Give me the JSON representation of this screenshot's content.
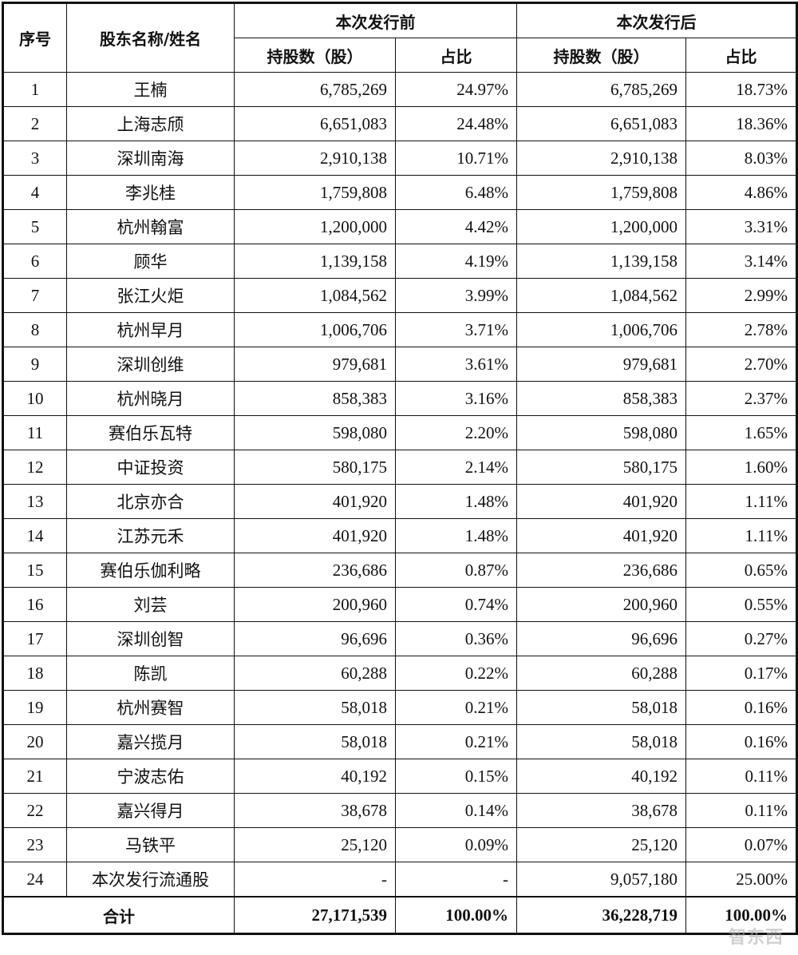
{
  "table": {
    "headers": {
      "seq": "序号",
      "name": "股东名称/姓名",
      "before_group": "本次发行前",
      "after_group": "本次发行后",
      "shares": "持股数（股）",
      "ratio": "占比"
    },
    "rows": [
      {
        "no": "1",
        "name": "王楠",
        "before_shares": "6,785,269",
        "before_ratio": "24.97%",
        "after_shares": "6,785,269",
        "after_ratio": "18.73%"
      },
      {
        "no": "2",
        "name": "上海志颀",
        "before_shares": "6,651,083",
        "before_ratio": "24.48%",
        "after_shares": "6,651,083",
        "after_ratio": "18.36%"
      },
      {
        "no": "3",
        "name": "深圳南海",
        "before_shares": "2,910,138",
        "before_ratio": "10.71%",
        "after_shares": "2,910,138",
        "after_ratio": "8.03%"
      },
      {
        "no": "4",
        "name": "李兆桂",
        "before_shares": "1,759,808",
        "before_ratio": "6.48%",
        "after_shares": "1,759,808",
        "after_ratio": "4.86%"
      },
      {
        "no": "5",
        "name": "杭州翰富",
        "before_shares": "1,200,000",
        "before_ratio": "4.42%",
        "after_shares": "1,200,000",
        "after_ratio": "3.31%"
      },
      {
        "no": "6",
        "name": "顾华",
        "before_shares": "1,139,158",
        "before_ratio": "4.19%",
        "after_shares": "1,139,158",
        "after_ratio": "3.14%"
      },
      {
        "no": "7",
        "name": "张江火炬",
        "before_shares": "1,084,562",
        "before_ratio": "3.99%",
        "after_shares": "1,084,562",
        "after_ratio": "2.99%"
      },
      {
        "no": "8",
        "name": "杭州早月",
        "before_shares": "1,006,706",
        "before_ratio": "3.71%",
        "after_shares": "1,006,706",
        "after_ratio": "2.78%"
      },
      {
        "no": "9",
        "name": "深圳创维",
        "before_shares": "979,681",
        "before_ratio": "3.61%",
        "after_shares": "979,681",
        "after_ratio": "2.70%"
      },
      {
        "no": "10",
        "name": "杭州晓月",
        "before_shares": "858,383",
        "before_ratio": "3.16%",
        "after_shares": "858,383",
        "after_ratio": "2.37%"
      },
      {
        "no": "11",
        "name": "赛伯乐瓦特",
        "before_shares": "598,080",
        "before_ratio": "2.20%",
        "after_shares": "598,080",
        "after_ratio": "1.65%"
      },
      {
        "no": "12",
        "name": "中证投资",
        "before_shares": "580,175",
        "before_ratio": "2.14%",
        "after_shares": "580,175",
        "after_ratio": "1.60%"
      },
      {
        "no": "13",
        "name": "北京亦合",
        "before_shares": "401,920",
        "before_ratio": "1.48%",
        "after_shares": "401,920",
        "after_ratio": "1.11%"
      },
      {
        "no": "14",
        "name": "江苏元禾",
        "before_shares": "401,920",
        "before_ratio": "1.48%",
        "after_shares": "401,920",
        "after_ratio": "1.11%"
      },
      {
        "no": "15",
        "name": "赛伯乐伽利略",
        "before_shares": "236,686",
        "before_ratio": "0.87%",
        "after_shares": "236,686",
        "after_ratio": "0.65%"
      },
      {
        "no": "16",
        "name": "刘芸",
        "before_shares": "200,960",
        "before_ratio": "0.74%",
        "after_shares": "200,960",
        "after_ratio": "0.55%"
      },
      {
        "no": "17",
        "name": "深圳创智",
        "before_shares": "96,696",
        "before_ratio": "0.36%",
        "after_shares": "96,696",
        "after_ratio": "0.27%"
      },
      {
        "no": "18",
        "name": "陈凯",
        "before_shares": "60,288",
        "before_ratio": "0.22%",
        "after_shares": "60,288",
        "after_ratio": "0.17%"
      },
      {
        "no": "19",
        "name": "杭州赛智",
        "before_shares": "58,018",
        "before_ratio": "0.21%",
        "after_shares": "58,018",
        "after_ratio": "0.16%"
      },
      {
        "no": "20",
        "name": "嘉兴揽月",
        "before_shares": "58,018",
        "before_ratio": "0.21%",
        "after_shares": "58,018",
        "after_ratio": "0.16%"
      },
      {
        "no": "21",
        "name": "宁波志佑",
        "before_shares": "40,192",
        "before_ratio": "0.15%",
        "after_shares": "40,192",
        "after_ratio": "0.11%"
      },
      {
        "no": "22",
        "name": "嘉兴得月",
        "before_shares": "38,678",
        "before_ratio": "0.14%",
        "after_shares": "38,678",
        "after_ratio": "0.11%"
      },
      {
        "no": "23",
        "name": "马铁平",
        "before_shares": "25,120",
        "before_ratio": "0.09%",
        "after_shares": "25,120",
        "after_ratio": "0.07%"
      },
      {
        "no": "24",
        "name": "本次发行流通股",
        "before_shares": "-",
        "before_ratio": "-",
        "after_shares": "9,057,180",
        "after_ratio": "25.00%"
      }
    ],
    "total": {
      "label": "合计",
      "before_shares": "27,171,539",
      "before_ratio": "100.00%",
      "after_shares": "36,228,719",
      "after_ratio": "100.00%"
    }
  },
  "watermark": "智东西"
}
